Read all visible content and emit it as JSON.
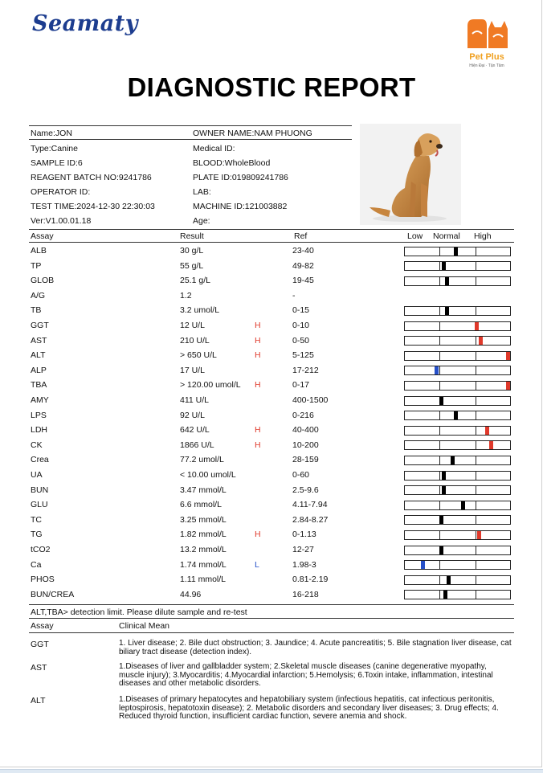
{
  "header": {
    "brand_left": "Seamaty",
    "brand_right": "Pet Plus",
    "brand_right_tagline": "Hiện Đại · Tận Tâm",
    "title": "DIAGNOSTIC REPORT"
  },
  "info": {
    "name": "Name:JON",
    "owner": "OWNER NAME:NAM PHUONG",
    "type": "Type:Canine",
    "medical_id": "Medical ID:",
    "sample_id": "SAMPLE ID:6",
    "blood": "BLOOD:WholeBlood",
    "reagent": "REAGENT BATCH NO:9241786",
    "plate": "PLATE ID:019809241786",
    "operator": "OPERATOR ID:",
    "lab": "LAB:",
    "test_time": "TEST TIME:2024-12-30 22:30:03",
    "machine": "MACHINE ID:121003882",
    "version": "Ver:V1.00.01.18",
    "age": "Age:"
  },
  "table": {
    "headers": {
      "assay": "Assay",
      "result": "Result",
      "ref": "Ref",
      "low": "Low",
      "normal": "Normal",
      "high": "High"
    },
    "rows": [
      {
        "assay": "ALB",
        "result": "30 g/L",
        "flag": "",
        "ref": "23-40",
        "level": 0.48,
        "color": "#000000"
      },
      {
        "assay": "TP",
        "result": "55 g/L",
        "flag": "",
        "ref": "49-82",
        "level": 0.37,
        "color": "#000000"
      },
      {
        "assay": "GLOB",
        "result": "25.1 g/L",
        "flag": "",
        "ref": "19-45",
        "level": 0.4,
        "color": "#000000"
      },
      {
        "assay": "A/G",
        "result": "1.2",
        "flag": "",
        "ref": "-",
        "level": null,
        "color": ""
      },
      {
        "assay": "TB",
        "result": "3.2 umol/L",
        "flag": "",
        "ref": "0-15",
        "level": 0.4,
        "color": "#000000"
      },
      {
        "assay": "GGT",
        "result": "12 U/L",
        "flag": "H",
        "ref": "0-10",
        "level": 0.68,
        "color": "#e0392b"
      },
      {
        "assay": "AST",
        "result": "210 U/L",
        "flag": "H",
        "ref": "0-50",
        "level": 0.72,
        "color": "#e0392b"
      },
      {
        "assay": "ALT",
        "result": "> 650 U/L",
        "flag": "H",
        "ref": "5-125",
        "level": 0.99,
        "color": "#e0392b"
      },
      {
        "assay": "ALP",
        "result": "17 U/L",
        "flag": "",
        "ref": "17-212",
        "level": 0.3,
        "color": "#2650c8"
      },
      {
        "assay": "TBA",
        "result": "> 120.00 umol/L",
        "flag": "H",
        "ref": "0-17",
        "level": 0.99,
        "color": "#e0392b"
      },
      {
        "assay": "AMY",
        "result": "411 U/L",
        "flag": "",
        "ref": "400-1500",
        "level": 0.34,
        "color": "#000000"
      },
      {
        "assay": "LPS",
        "result": "92 U/L",
        "flag": "",
        "ref": "0-216",
        "level": 0.48,
        "color": "#000000"
      },
      {
        "assay": "LDH",
        "result": "642 U/L",
        "flag": "H",
        "ref": "40-400",
        "level": 0.78,
        "color": "#e0392b"
      },
      {
        "assay": "CK",
        "result": "1866 U/L",
        "flag": "H",
        "ref": "10-200",
        "level": 0.82,
        "color": "#e0392b"
      },
      {
        "assay": "Crea",
        "result": "77.2 umol/L",
        "flag": "",
        "ref": "28-159",
        "level": 0.45,
        "color": "#000000"
      },
      {
        "assay": "UA",
        "result": "< 10.00 umol/L",
        "flag": "",
        "ref": "0-60",
        "level": 0.37,
        "color": "#000000"
      },
      {
        "assay": "BUN",
        "result": "3.47 mmol/L",
        "flag": "",
        "ref": "2.5-9.6",
        "level": 0.37,
        "color": "#000000"
      },
      {
        "assay": "GLU",
        "result": "6.6 mmol/L",
        "flag": "",
        "ref": "4.11-7.94",
        "level": 0.55,
        "color": "#000000"
      },
      {
        "assay": "TC",
        "result": "3.25 mmol/L",
        "flag": "",
        "ref": "2.84-8.27",
        "level": 0.34,
        "color": "#000000"
      },
      {
        "assay": "TG",
        "result": "1.82 mmol/L",
        "flag": "H",
        "ref": "0-1.13",
        "level": 0.7,
        "color": "#e0392b"
      },
      {
        "assay": "tCO2",
        "result": "13.2 mmol/L",
        "flag": "",
        "ref": "12-27",
        "level": 0.34,
        "color": "#000000"
      },
      {
        "assay": "Ca",
        "result": "1.74 mmol/L",
        "flag": "L",
        "ref": "1.98-3",
        "level": 0.17,
        "color": "#2650c8"
      },
      {
        "assay": "PHOS",
        "result": "1.11 mmol/L",
        "flag": "",
        "ref": "0.81-2.19",
        "level": 0.41,
        "color": "#000000"
      },
      {
        "assay": "BUN/CREA",
        "result": "44.96",
        "flag": "",
        "ref": "16-218",
        "level": 0.38,
        "color": "#000000"
      }
    ]
  },
  "note": "ALT,TBA> detection limit. Please dilute sample and re-test",
  "clinical": {
    "headers": {
      "assay": "Assay",
      "mean": "Clinical Mean"
    },
    "items": [
      {
        "assay": "GGT",
        "text": "1. Liver disease; 2. Bile duct obstruction; 3. Jaundice; 4. Acute pancreatitis; 5. Bile stagnation liver disease, cat biliary tract disease (detection index)."
      },
      {
        "assay": "AST",
        "text": "1.Diseases of liver and gallbladder system; 2.Skeletal muscle diseases (canine degenerative myopathy, muscle injury); 3.Myocarditis; 4.Myocardial infarction; 5.Hemolysis; 6.Toxin intake, inflammation, intestinal diseases and other metabolic disorders."
      },
      {
        "assay": "ALT",
        "text": "1.Diseases of primary hepatocytes and hepatobiliary system (infectious hepatitis, cat infectious peritonitis, leptospirosis, hepatotoxin disease); 2. Metabolic disorders and secondary liver diseases; 3. Drug effects; 4. Reduced thyroid function, insufficient cardiac function, severe anemia and shock."
      }
    ]
  }
}
